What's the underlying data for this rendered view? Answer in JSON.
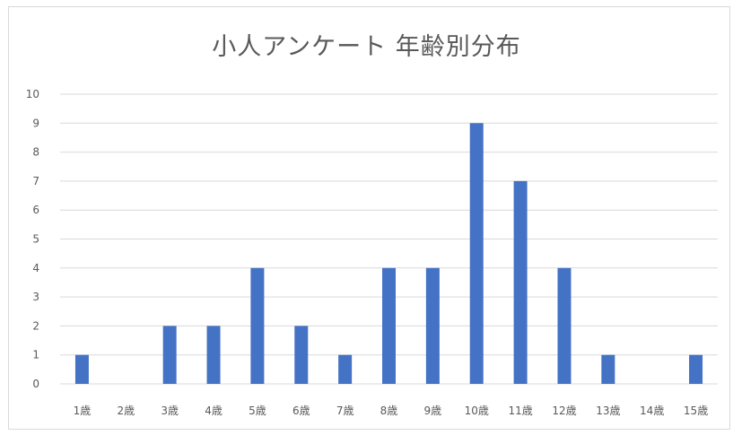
{
  "chart_data": {
    "type": "bar",
    "title": "小人アンケート 年齢別分布",
    "categories": [
      "1歳",
      "2歳",
      "3歳",
      "4歳",
      "5歳",
      "6歳",
      "7歳",
      "8歳",
      "9歳",
      "10歳",
      "11歳",
      "12歳",
      "13歳",
      "14歳",
      "15歳"
    ],
    "values": [
      1,
      0,
      2,
      2,
      4,
      2,
      1,
      4,
      4,
      9,
      7,
      4,
      1,
      0,
      1
    ],
    "ylim": [
      0,
      10
    ],
    "yticks": [
      0,
      1,
      2,
      3,
      4,
      5,
      6,
      7,
      8,
      9,
      10
    ],
    "grid": true,
    "colors": {
      "bar": "#4472c4",
      "grid": "#d9d9d9",
      "text": "#595959"
    }
  }
}
